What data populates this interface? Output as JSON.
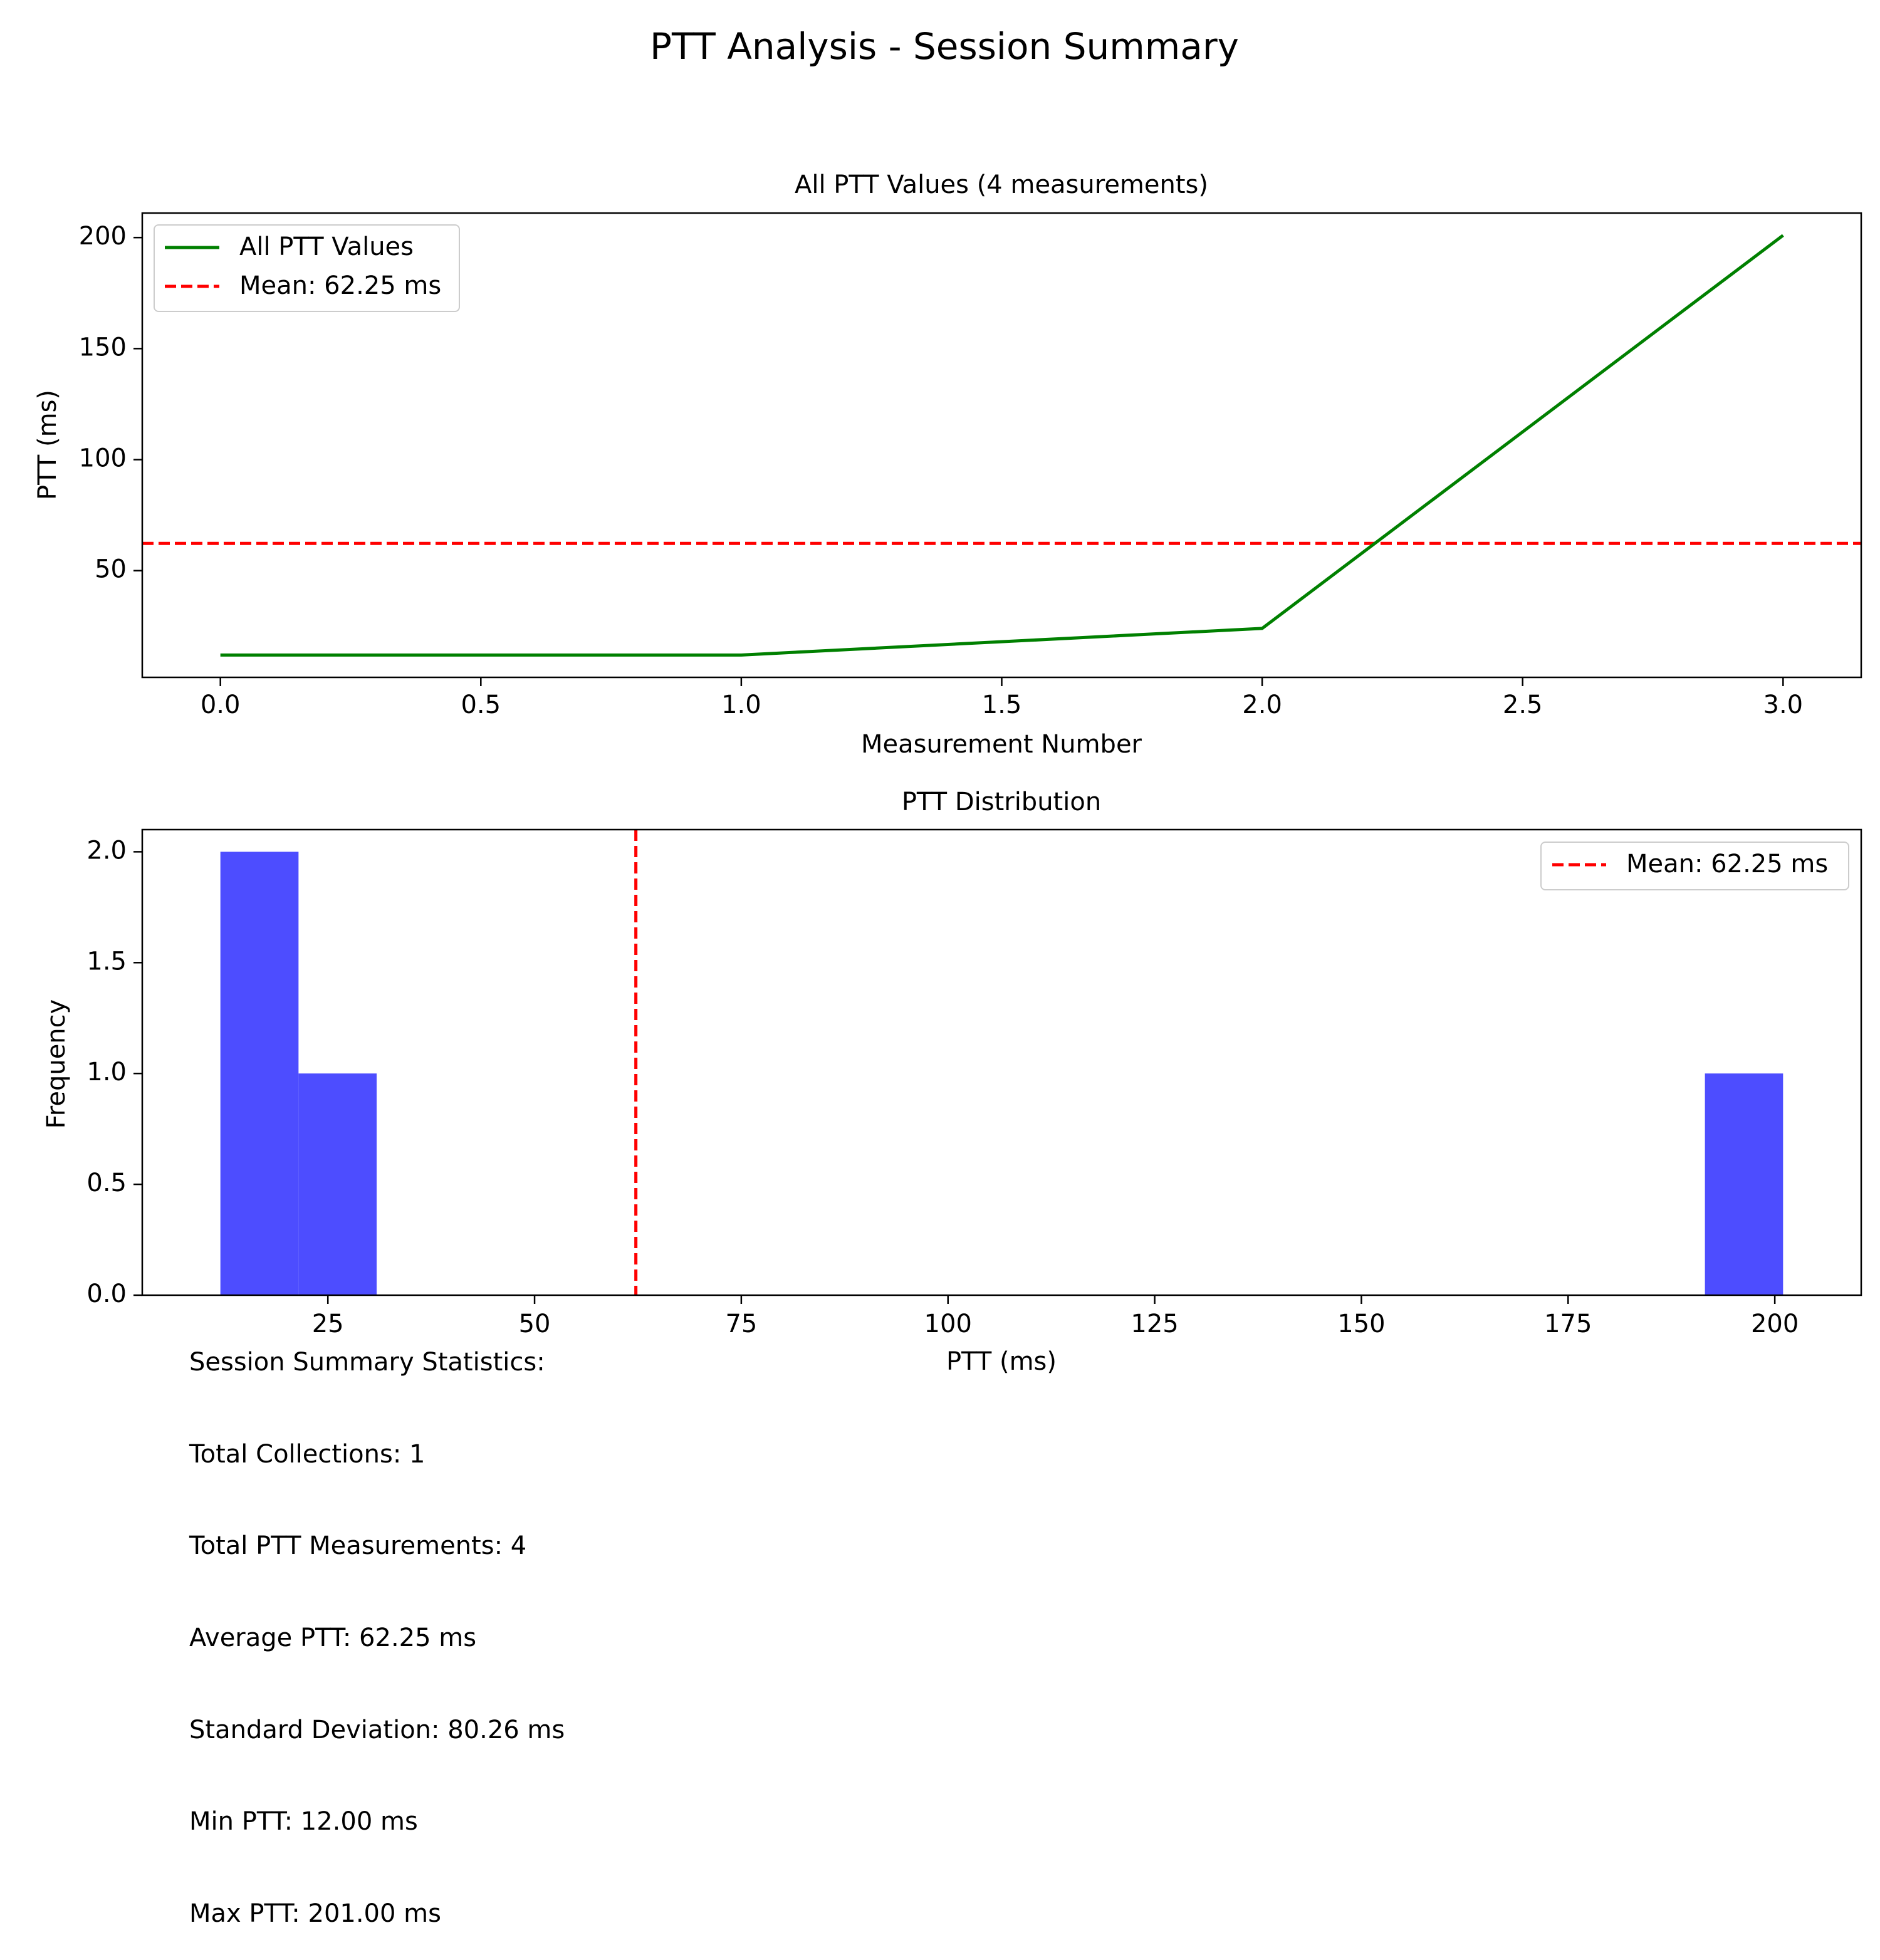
{
  "figure": {
    "suptitle": "PTT Analysis - Session Summary"
  },
  "chart_data": [
    {
      "type": "line",
      "title": "All PTT Values (4 measurements)",
      "xlabel": "Measurement Number",
      "ylabel": "PTT (ms)",
      "xlim": [
        -0.15,
        3.15
      ],
      "ylim": [
        1.95,
        211.05
      ],
      "xticks": [
        0.0,
        0.5,
        1.0,
        1.5,
        2.0,
        2.5,
        3.0
      ],
      "xtick_labels": [
        "0.0",
        "0.5",
        "1.0",
        "1.5",
        "2.0",
        "2.5",
        "3.0"
      ],
      "yticks": [
        50,
        100,
        150,
        200
      ],
      "ytick_labels": [
        "50",
        "100",
        "150",
        "200"
      ],
      "grid": false,
      "legend_position": "upper-left",
      "series": [
        {
          "name": "All PTT Values",
          "x": [
            0,
            1,
            2,
            3
          ],
          "y": [
            12,
            12,
            24,
            201
          ],
          "color": "#008000",
          "style": "solid"
        }
      ],
      "reference_lines": [
        {
          "name": "Mean: 62.25 ms",
          "orientation": "horizontal",
          "value": 62.25,
          "color": "#ff0000",
          "style": "dashed"
        }
      ]
    },
    {
      "type": "bar",
      "subtype": "histogram",
      "title": "PTT Distribution",
      "xlabel": "PTT (ms)",
      "ylabel": "Frequency",
      "xlim": [
        2.55,
        210.45
      ],
      "ylim": [
        0,
        2.1
      ],
      "xticks": [
        25,
        50,
        75,
        100,
        125,
        150,
        175,
        200
      ],
      "xtick_labels": [
        "25",
        "50",
        "75",
        "100",
        "125",
        "150",
        "175",
        "200"
      ],
      "yticks": [
        0.0,
        0.5,
        1.0,
        1.5,
        2.0
      ],
      "ytick_labels": [
        "0.0",
        "0.5",
        "1.0",
        "1.5",
        "2.0"
      ],
      "grid": false,
      "legend_position": "upper-right",
      "bar_color": "#4d4dff",
      "bins": [
        {
          "start": 12.0,
          "end": 21.45,
          "count": 2
        },
        {
          "start": 21.45,
          "end": 30.9,
          "count": 1
        },
        {
          "start": 191.55,
          "end": 201.0,
          "count": 1
        }
      ],
      "reference_lines": [
        {
          "name": "Mean: 62.25 ms",
          "orientation": "vertical",
          "value": 62.25,
          "color": "#ff0000",
          "style": "dashed"
        }
      ]
    }
  ],
  "stats": {
    "lines": [
      "Session Summary Statistics:",
      "Total Collections: 1",
      "Total PTT Measurements: 4",
      "Average PTT: 62.25 ms",
      "Standard Deviation: 80.26 ms",
      "Min PTT: 12.00 ms",
      "Max PTT: 201.00 ms"
    ]
  }
}
